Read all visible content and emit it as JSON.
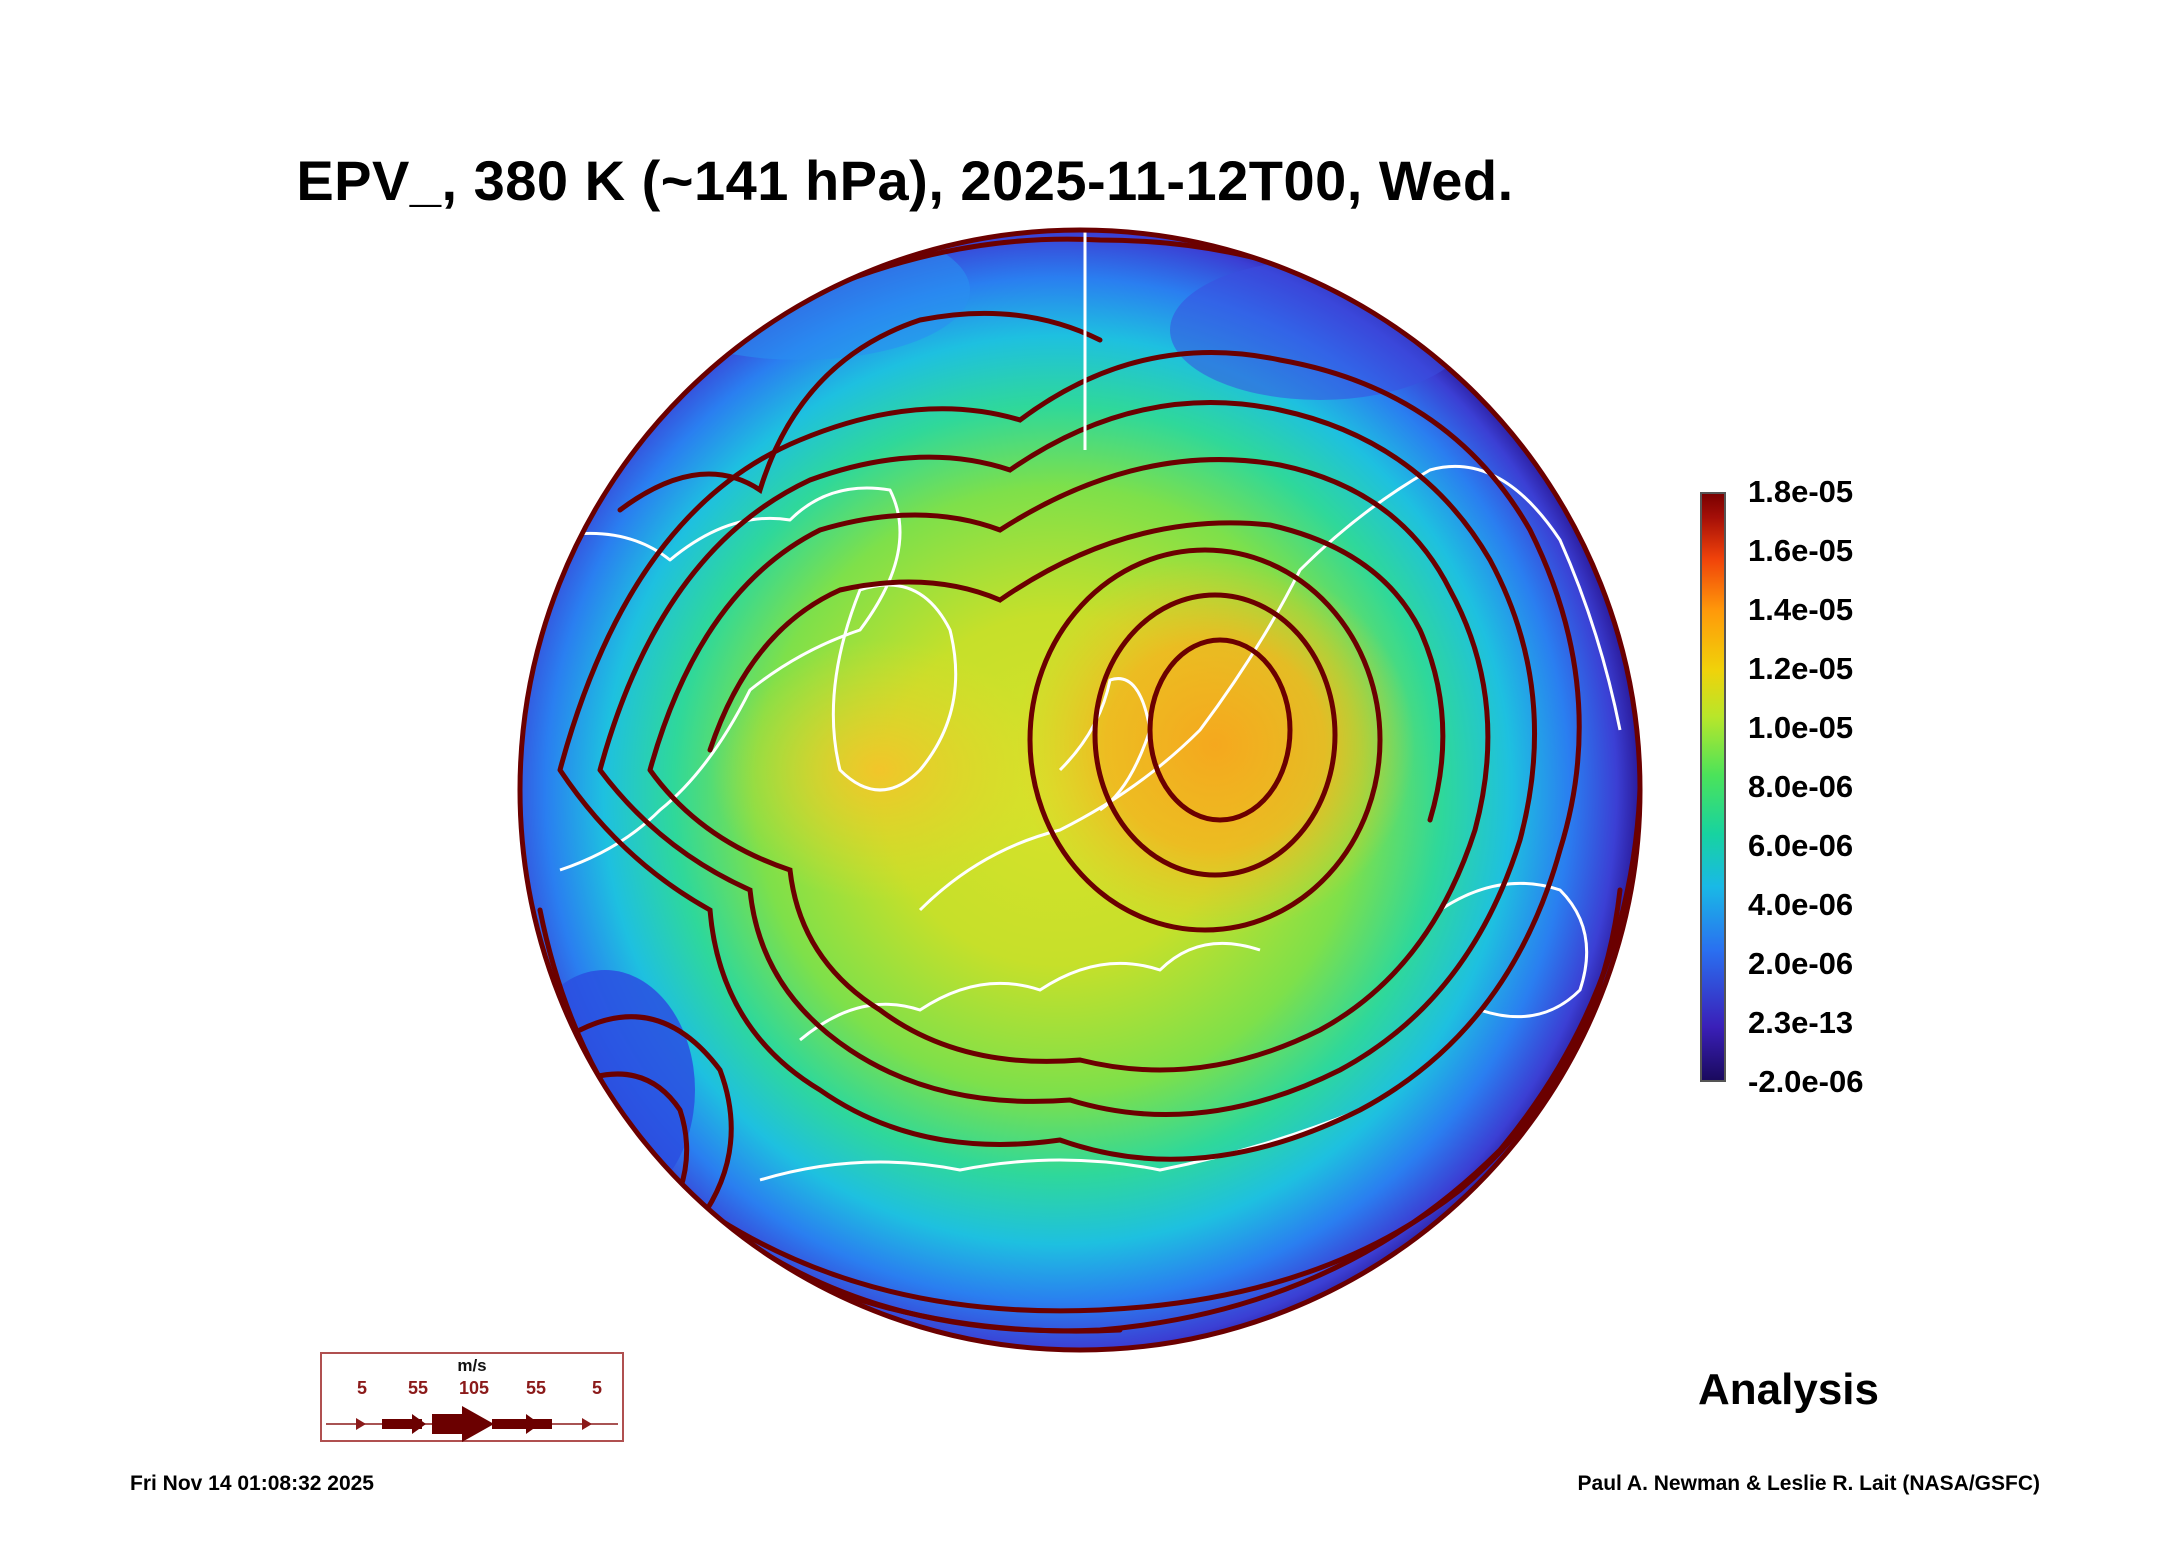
{
  "title": "EPV_, 380 K (~141 hPa), 2025-11-12T00, Wed.",
  "colorbar": {
    "labels": [
      "1.8e-05",
      "1.6e-05",
      "1.4e-05",
      "1.2e-05",
      "1.0e-05",
      "8.0e-06",
      "6.0e-06",
      "4.0e-06",
      "2.0e-06",
      "2.3e-13",
      "-2.0e-06"
    ]
  },
  "wind_legend": {
    "unit": "m/s",
    "values": [
      "5",
      "55",
      "105",
      "55",
      "5"
    ]
  },
  "label_analysis": "Analysis",
  "footer": {
    "timestamp": "Fri Nov 14 01:08:32 2025",
    "credit": "Paul A. Newman & Leslie R. Lait (NASA/GSFC)"
  },
  "colors": {
    "streamline": "#6b0000",
    "coast": "#ffffff",
    "disk_outer": "#2a3fd0",
    "disk_mid": "#2ad47a",
    "disk_center": "#d9e02a",
    "vortex": "#f0a020"
  }
}
